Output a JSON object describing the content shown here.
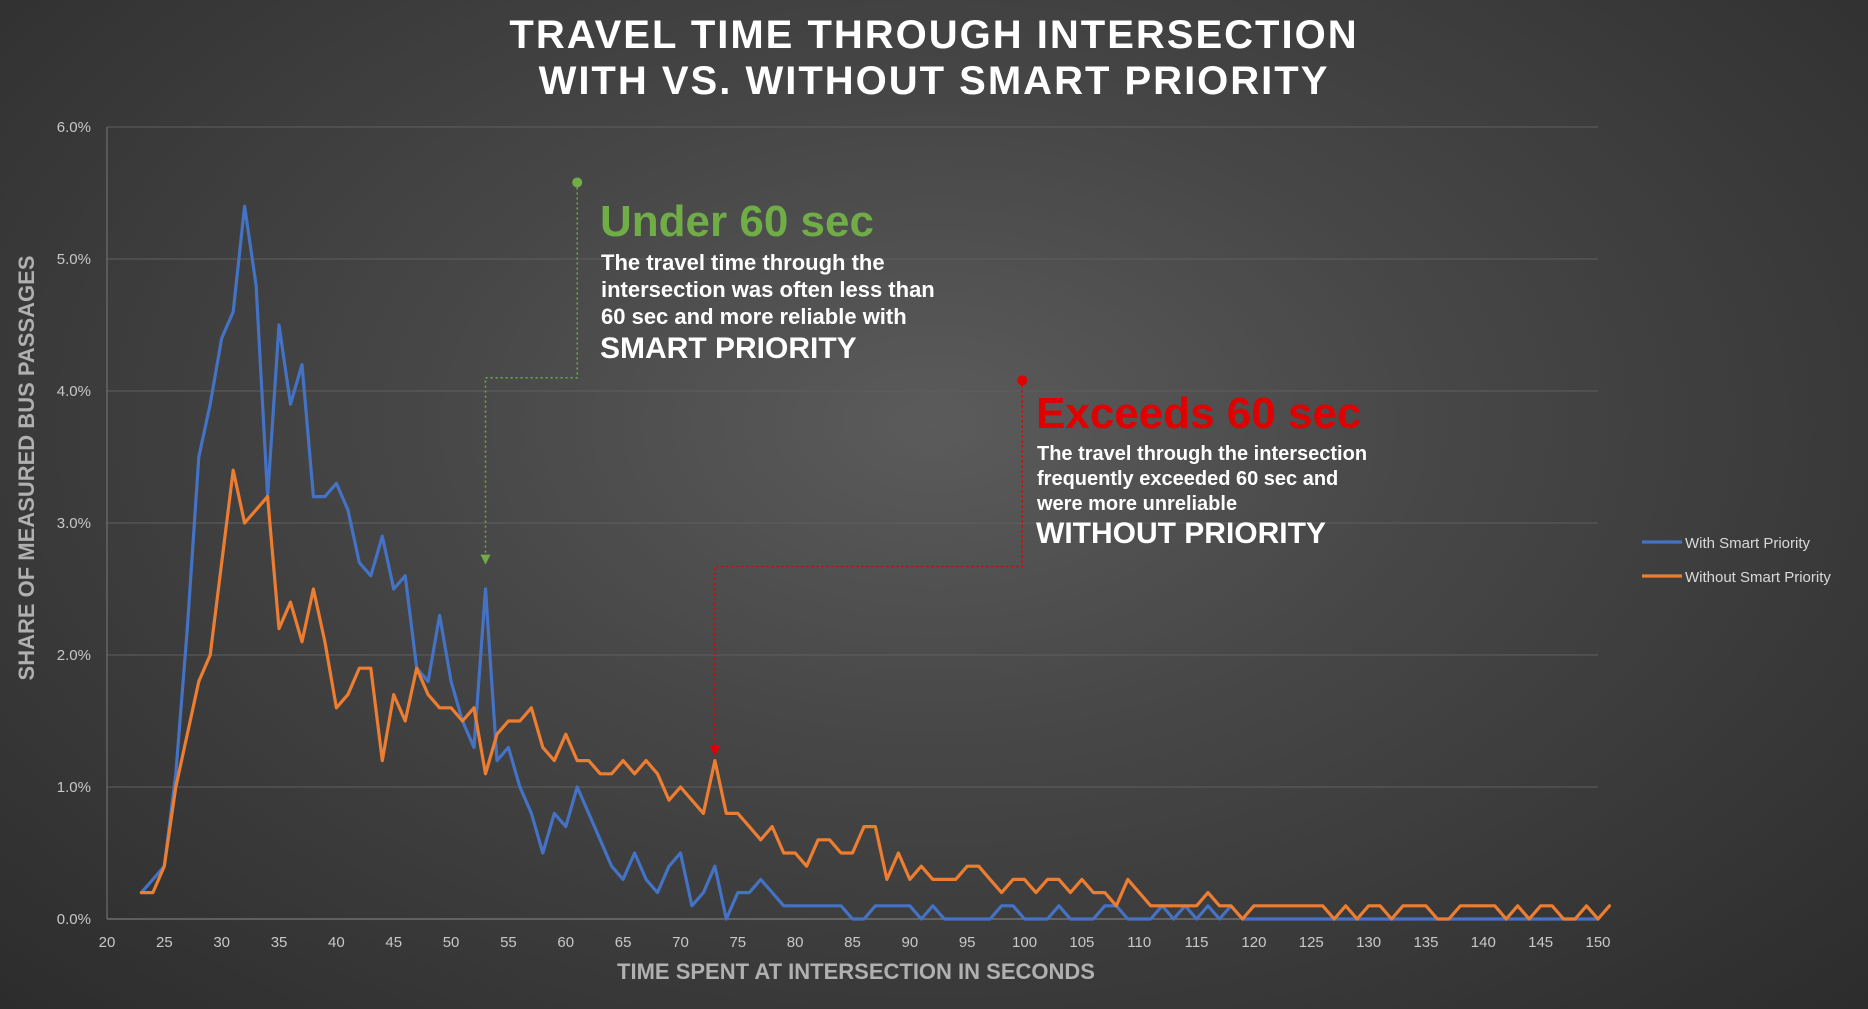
{
  "chart_data": {
    "type": "line",
    "title": [
      "TRAVEL TIME THROUGH INTERSECTION",
      "WITH VS. WITHOUT SMART PRIORITY"
    ],
    "xlabel": "TIME SPENT AT INTERSECTION IN SECONDS",
    "ylabel": "SHARE OF MEASURED BUS PASSAGES",
    "xlim": [
      20,
      150
    ],
    "ylim": [
      0,
      0.06
    ],
    "x_ticks": [
      20,
      25,
      30,
      35,
      40,
      45,
      50,
      55,
      60,
      65,
      70,
      75,
      80,
      85,
      90,
      95,
      100,
      105,
      110,
      115,
      120,
      125,
      130,
      135,
      140,
      145,
      150
    ],
    "y_ticks": [
      {
        "value": 0,
        "label": "0.0%"
      },
      {
        "value": 0.01,
        "label": "1.0%"
      },
      {
        "value": 0.02,
        "label": "2.0%"
      },
      {
        "value": 0.03,
        "label": "3.0%"
      },
      {
        "value": 0.04,
        "label": "4.0%"
      },
      {
        "value": 0.05,
        "label": "5.0%"
      },
      {
        "value": 0.06,
        "label": "6.0%"
      }
    ],
    "grid": true,
    "legend_position": "right",
    "x_start": 23,
    "series": [
      {
        "name": "With Smart Priority",
        "color": "#4472c4",
        "values": [
          0.002,
          0.003,
          0.004,
          0.011,
          0.022,
          0.035,
          0.039,
          0.044,
          0.046,
          0.054,
          0.048,
          0.032,
          0.045,
          0.039,
          0.042,
          0.032,
          0.032,
          0.033,
          0.031,
          0.027,
          0.026,
          0.029,
          0.025,
          0.026,
          0.019,
          0.018,
          0.023,
          0.018,
          0.015,
          0.013,
          0.025,
          0.012,
          0.013,
          0.01,
          0.008,
          0.005,
          0.008,
          0.007,
          0.01,
          0.008,
          0.006,
          0.004,
          0.003,
          0.005,
          0.003,
          0.002,
          0.004,
          0.005,
          0.001,
          0.002,
          0.004,
          0.0,
          0.002,
          0.002,
          0.003,
          0.002,
          0.001,
          0.001,
          0.001,
          0.001,
          0.001,
          0.001,
          0.0,
          0.0,
          0.001,
          0.001,
          0.001,
          0.001,
          0.0,
          0.001,
          0.0,
          0.0,
          0.0,
          0.0,
          0.0,
          0.001,
          0.001,
          0.0,
          0.0,
          0.0,
          0.001,
          0.0,
          0.0,
          0.0,
          0.001,
          0.001,
          0.0,
          0.0,
          0.0,
          0.001,
          0.0,
          0.001,
          0.0,
          0.001,
          0.0,
          0.001,
          0.0,
          0.0,
          0.0,
          0.0,
          0.0,
          0.0,
          0.0,
          0.0,
          0.0,
          0.0,
          0.0,
          0.0,
          0.0,
          0.0,
          0.0,
          0.0,
          0.0,
          0.0,
          0.0,
          0.0,
          0.0,
          0.0,
          0.0,
          0.0,
          0.0,
          0.0,
          0.0,
          0.0,
          0.0,
          0.0,
          0.0,
          0.0
        ]
      },
      {
        "name": "Without Smart Priority",
        "color": "#ed7d31",
        "values": [
          0.002,
          0.002,
          0.004,
          0.01,
          0.014,
          0.018,
          0.02,
          0.027,
          0.034,
          0.03,
          0.031,
          0.032,
          0.022,
          0.024,
          0.021,
          0.025,
          0.021,
          0.016,
          0.017,
          0.019,
          0.019,
          0.012,
          0.017,
          0.015,
          0.019,
          0.017,
          0.016,
          0.016,
          0.015,
          0.016,
          0.011,
          0.014,
          0.015,
          0.015,
          0.016,
          0.013,
          0.012,
          0.014,
          0.012,
          0.012,
          0.011,
          0.011,
          0.012,
          0.011,
          0.012,
          0.011,
          0.009,
          0.01,
          0.009,
          0.008,
          0.012,
          0.008,
          0.008,
          0.007,
          0.006,
          0.007,
          0.005,
          0.005,
          0.004,
          0.006,
          0.006,
          0.005,
          0.005,
          0.007,
          0.007,
          0.003,
          0.005,
          0.003,
          0.004,
          0.003,
          0.003,
          0.003,
          0.004,
          0.004,
          0.003,
          0.002,
          0.003,
          0.003,
          0.002,
          0.003,
          0.003,
          0.002,
          0.003,
          0.002,
          0.002,
          0.001,
          0.003,
          0.002,
          0.001,
          0.001,
          0.001,
          0.001,
          0.001,
          0.002,
          0.001,
          0.001,
          0.0,
          0.001,
          0.001,
          0.001,
          0.001,
          0.001,
          0.001,
          0.001,
          0.0,
          0.001,
          0.0,
          0.001,
          0.001,
          0.0,
          0.001,
          0.001,
          0.001,
          0.0,
          0.0,
          0.001,
          0.001,
          0.001,
          0.001,
          0.0,
          0.001,
          0.0,
          0.001,
          0.001,
          0.0,
          0.0,
          0.001,
          0.0,
          0.001
        ]
      }
    ],
    "annotations": [
      {
        "heading": "Under 60 sec",
        "body": [
          "The travel time through the",
          "intersection was often less than",
          "60 sec and more reliable with"
        ],
        "emphasis": "SMART PRIORITY",
        "color": "#70ad47",
        "pointer_x": 53
      },
      {
        "heading": "Exceeds 60 sec",
        "body": [
          "The travel through the intersection",
          "frequently exceeded 60 sec and",
          "were more unreliable"
        ],
        "emphasis": "WITHOUT PRIORITY",
        "color": "#e00000",
        "pointer_x": 73
      }
    ]
  }
}
